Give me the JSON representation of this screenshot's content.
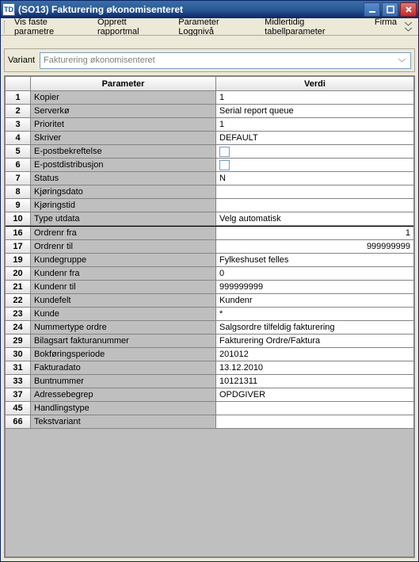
{
  "window": {
    "icon_text": "TD",
    "title": "(SO13) Fakturering økonomisenteret"
  },
  "menu": {
    "items": [
      "Vis faste parametre",
      "Opprett rapportmal",
      "Parameter Loggnivå",
      "Midlertidig tabellparameter",
      "Firma"
    ]
  },
  "variant": {
    "label": "Variant",
    "value": "Fakturering økonomisenteret"
  },
  "grid": {
    "headers": {
      "param": "Parameter",
      "value": "Verdi"
    },
    "sections": [
      {
        "rows": [
          {
            "n": "1",
            "param": "Kopier",
            "value": "1",
            "type": "text"
          },
          {
            "n": "2",
            "param": "Serverkø",
            "value": "Serial report queue",
            "type": "text"
          },
          {
            "n": "3",
            "param": "Prioritet",
            "value": "1",
            "type": "text"
          },
          {
            "n": "4",
            "param": "Skriver",
            "value": "DEFAULT",
            "type": "text"
          },
          {
            "n": "5",
            "param": "E-postbekreftelse",
            "value": "",
            "type": "check"
          },
          {
            "n": "6",
            "param": "E-postdistribusjon",
            "value": "",
            "type": "check"
          },
          {
            "n": "7",
            "param": "Status",
            "value": "N",
            "type": "text"
          },
          {
            "n": "8",
            "param": "Kjøringsdato",
            "value": "",
            "type": "text"
          },
          {
            "n": "9",
            "param": "Kjøringstid",
            "value": "",
            "type": "text"
          },
          {
            "n": "10",
            "param": "Type utdata",
            "value": "Velg automatisk",
            "type": "text"
          }
        ]
      },
      {
        "rows": [
          {
            "n": "16",
            "param": "Ordrenr fra",
            "value": "1",
            "type": "text",
            "align": "right"
          },
          {
            "n": "17",
            "param": "Ordrenr til",
            "value": "999999999",
            "type": "text",
            "align": "right"
          },
          {
            "n": "19",
            "param": "Kundegruppe",
            "value": "Fylkeshuset felles",
            "type": "text"
          },
          {
            "n": "20",
            "param": "Kundenr fra",
            "value": "0",
            "type": "text"
          },
          {
            "n": "21",
            "param": "Kundenr til",
            "value": "999999999",
            "type": "text"
          },
          {
            "n": "22",
            "param": "Kundefelt",
            "value": "Kundenr",
            "type": "text"
          },
          {
            "n": "23",
            "param": "Kunde",
            "value": "*",
            "type": "text"
          },
          {
            "n": "24",
            "param": "Nummertype ordre",
            "value": "Salgsordre tilfeldig fakturering",
            "type": "text"
          },
          {
            "n": "29",
            "param": "Bilagsart fakturanummer",
            "value": "Fakturering Ordre/Faktura",
            "type": "text"
          },
          {
            "n": "30",
            "param": "Bokføringsperiode",
            "value": "201012",
            "type": "text"
          },
          {
            "n": "31",
            "param": "Fakturadato",
            "value": "13.12.2010",
            "type": "text"
          },
          {
            "n": "33",
            "param": "Buntnummer",
            "value": "10121311",
            "type": "text"
          },
          {
            "n": "37",
            "param": "Adressebegrep",
            "value": "OPDGIVER",
            "type": "text"
          },
          {
            "n": "45",
            "param": "Handlingstype",
            "value": "",
            "type": "text"
          },
          {
            "n": "66",
            "param": "Tekstvariant",
            "value": "",
            "type": "text"
          }
        ]
      }
    ]
  },
  "colors": {
    "titlebar_start": "#3a6ea5",
    "titlebar_end": "#0a246a",
    "panel_bg": "#ece9d8",
    "grid_bg": "#bfbfbf",
    "border": "#848484"
  }
}
